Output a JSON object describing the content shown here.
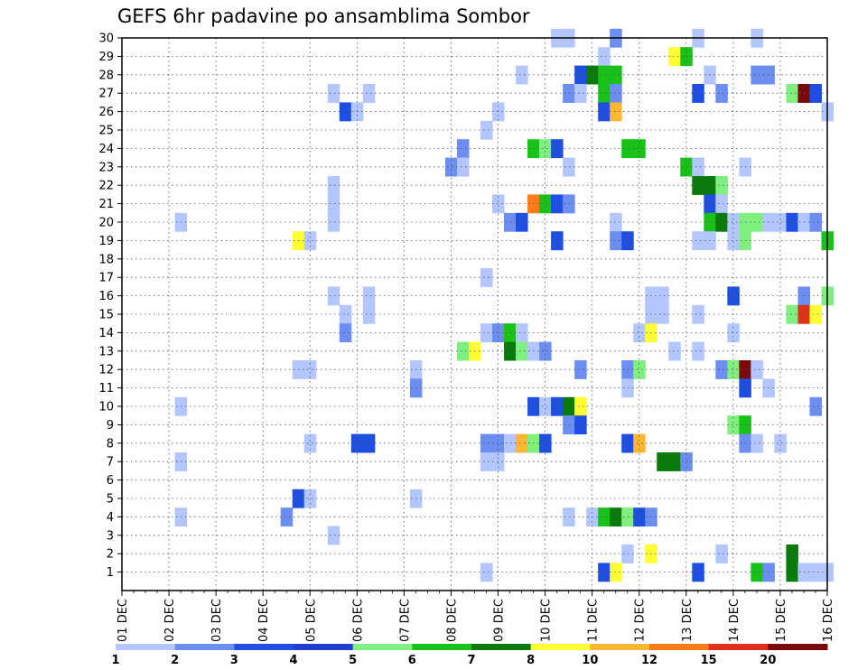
{
  "chart_data": {
    "type": "heatmap",
    "title": "GEFS 6hr padavine po ansamblima Sombor",
    "xlabel": "",
    "ylabel": "",
    "x_labels": [
      "01 DEC",
      "02 DEC",
      "03 DEC",
      "04 DEC",
      "05 DEC",
      "06 DEC",
      "07 DEC",
      "08 DEC",
      "09 DEC",
      "10 DEC",
      "11 DEC",
      "12 DEC",
      "13 DEC",
      "14 DEC",
      "15 DEC",
      "16 DEC"
    ],
    "x_range_days": [
      1,
      16
    ],
    "y_labels": [
      1,
      2,
      3,
      4,
      5,
      6,
      7,
      8,
      9,
      10,
      11,
      12,
      13,
      14,
      15,
      16,
      17,
      18,
      19,
      20,
      21,
      22,
      23,
      24,
      25,
      26,
      27,
      28,
      29,
      30
    ],
    "y_range_members": [
      0,
      30
    ],
    "grid": "dotted",
    "colorbar": {
      "labels": [
        "1",
        "2",
        "3",
        "4",
        "5",
        "6",
        "7",
        "8",
        "10",
        "12",
        "15",
        "20"
      ],
      "colors": [
        "#b3c6ff",
        "#6b8ef0",
        "#1f4fe0",
        "#1f3fd0",
        "#7ff07f",
        "#19c219",
        "#0a7a0a",
        "#ffff33",
        "#ffb733",
        "#ff7a1a",
        "#e0301a",
        "#7a0a0a"
      ]
    },
    "cells": [
      {
        "day": 10.25,
        "member": 30,
        "value": 1
      },
      {
        "day": 10.5,
        "member": 30,
        "value": 1
      },
      {
        "day": 11.5,
        "member": 30,
        "value": 2
      },
      {
        "day": 13.25,
        "member": 30,
        "value": 1
      },
      {
        "day": 14.5,
        "member": 30,
        "value": 1
      },
      {
        "day": 11.25,
        "member": 29,
        "value": 1
      },
      {
        "day": 12.75,
        "member": 29,
        "value": 8
      },
      {
        "day": 13.0,
        "member": 29,
        "value": 6
      },
      {
        "day": 9.5,
        "member": 28,
        "value": 1
      },
      {
        "day": 10.75,
        "member": 28,
        "value": 3
      },
      {
        "day": 11.0,
        "member": 28,
        "value": 7
      },
      {
        "day": 11.25,
        "member": 28,
        "value": 6
      },
      {
        "day": 11.5,
        "member": 28,
        "value": 6
      },
      {
        "day": 13.5,
        "member": 28,
        "value": 1
      },
      {
        "day": 14.5,
        "member": 28,
        "value": 2
      },
      {
        "day": 14.75,
        "member": 28,
        "value": 2
      },
      {
        "day": 5.5,
        "member": 27,
        "value": 1
      },
      {
        "day": 6.25,
        "member": 27,
        "value": 1
      },
      {
        "day": 10.5,
        "member": 27,
        "value": 2
      },
      {
        "day": 10.75,
        "member": 27,
        "value": 1
      },
      {
        "day": 11.25,
        "member": 27,
        "value": 6
      },
      {
        "day": 11.5,
        "member": 27,
        "value": 2
      },
      {
        "day": 13.25,
        "member": 27,
        "value": 3
      },
      {
        "day": 13.75,
        "member": 27,
        "value": 2
      },
      {
        "day": 15.25,
        "member": 27,
        "value": 5
      },
      {
        "day": 15.5,
        "member": 27,
        "value": 20
      },
      {
        "day": 15.75,
        "member": 27,
        "value": 3
      },
      {
        "day": 5.75,
        "member": 26,
        "value": 3
      },
      {
        "day": 6.0,
        "member": 26,
        "value": 1
      },
      {
        "day": 9.0,
        "member": 26,
        "value": 1
      },
      {
        "day": 11.25,
        "member": 26,
        "value": 3
      },
      {
        "day": 11.5,
        "member": 26,
        "value": 10
      },
      {
        "day": 16.0,
        "member": 26,
        "value": 1
      },
      {
        "day": 8.75,
        "member": 25,
        "value": 1
      },
      {
        "day": 8.25,
        "member": 24,
        "value": 2
      },
      {
        "day": 9.75,
        "member": 24,
        "value": 6
      },
      {
        "day": 10.0,
        "member": 24,
        "value": 5
      },
      {
        "day": 10.25,
        "member": 24,
        "value": 3
      },
      {
        "day": 11.75,
        "member": 24,
        "value": 6
      },
      {
        "day": 12.0,
        "member": 24,
        "value": 6
      },
      {
        "day": 8.0,
        "member": 23,
        "value": 2
      },
      {
        "day": 8.25,
        "member": 23,
        "value": 1
      },
      {
        "day": 10.5,
        "member": 23,
        "value": 1
      },
      {
        "day": 13.0,
        "member": 23,
        "value": 6
      },
      {
        "day": 13.25,
        "member": 23,
        "value": 1
      },
      {
        "day": 14.25,
        "member": 23,
        "value": 1
      },
      {
        "day": 5.5,
        "member": 22,
        "value": 1
      },
      {
        "day": 13.25,
        "member": 22,
        "value": 7
      },
      {
        "day": 13.5,
        "member": 22,
        "value": 7
      },
      {
        "day": 13.75,
        "member": 22,
        "value": 5
      },
      {
        "day": 5.5,
        "member": 21,
        "value": 1
      },
      {
        "day": 9.0,
        "member": 21,
        "value": 1
      },
      {
        "day": 9.75,
        "member": 21,
        "value": 12
      },
      {
        "day": 10.0,
        "member": 21,
        "value": 6
      },
      {
        "day": 10.25,
        "member": 21,
        "value": 3
      },
      {
        "day": 10.5,
        "member": 21,
        "value": 2
      },
      {
        "day": 13.5,
        "member": 21,
        "value": 3
      },
      {
        "day": 13.75,
        "member": 21,
        "value": 1
      },
      {
        "day": 2.25,
        "member": 20,
        "value": 1
      },
      {
        "day": 5.5,
        "member": 20,
        "value": 1
      },
      {
        "day": 9.25,
        "member": 20,
        "value": 2
      },
      {
        "day": 9.5,
        "member": 20,
        "value": 3
      },
      {
        "day": 11.5,
        "member": 20,
        "value": 1
      },
      {
        "day": 13.5,
        "member": 20,
        "value": 6
      },
      {
        "day": 13.75,
        "member": 20,
        "value": 7
      },
      {
        "day": 14.0,
        "member": 20,
        "value": 1
      },
      {
        "day": 14.25,
        "member": 20,
        "value": 5
      },
      {
        "day": 14.5,
        "member": 20,
        "value": 5
      },
      {
        "day": 14.75,
        "member": 20,
        "value": 1
      },
      {
        "day": 15.0,
        "member": 20,
        "value": 1
      },
      {
        "day": 15.25,
        "member": 20,
        "value": 3
      },
      {
        "day": 15.5,
        "member": 20,
        "value": 1
      },
      {
        "day": 15.75,
        "member": 20,
        "value": 2
      },
      {
        "day": 4.75,
        "member": 19,
        "value": 8
      },
      {
        "day": 5.0,
        "member": 19,
        "value": 1
      },
      {
        "day": 10.25,
        "member": 19,
        "value": 3
      },
      {
        "day": 11.5,
        "member": 19,
        "value": 2
      },
      {
        "day": 11.75,
        "member": 19,
        "value": 3
      },
      {
        "day": 13.25,
        "member": 19,
        "value": 1
      },
      {
        "day": 13.5,
        "member": 19,
        "value": 1
      },
      {
        "day": 14.0,
        "member": 19,
        "value": 1
      },
      {
        "day": 14.25,
        "member": 19,
        "value": 5
      },
      {
        "day": 16.0,
        "member": 19,
        "value": 6
      },
      {
        "day": 8.75,
        "member": 17,
        "value": 1
      },
      {
        "day": 5.5,
        "member": 16,
        "value": 1
      },
      {
        "day": 6.25,
        "member": 16,
        "value": 1
      },
      {
        "day": 12.25,
        "member": 16,
        "value": 1
      },
      {
        "day": 12.5,
        "member": 16,
        "value": 1
      },
      {
        "day": 14.0,
        "member": 16,
        "value": 3
      },
      {
        "day": 15.5,
        "member": 16,
        "value": 2
      },
      {
        "day": 16.0,
        "member": 16,
        "value": 5
      },
      {
        "day": 5.75,
        "member": 15,
        "value": 1
      },
      {
        "day": 6.25,
        "member": 15,
        "value": 1
      },
      {
        "day": 12.25,
        "member": 15,
        "value": 1
      },
      {
        "day": 12.5,
        "member": 15,
        "value": 1
      },
      {
        "day": 13.25,
        "member": 15,
        "value": 1
      },
      {
        "day": 15.25,
        "member": 15,
        "value": 5
      },
      {
        "day": 15.5,
        "member": 15,
        "value": 15
      },
      {
        "day": 15.75,
        "member": 15,
        "value": 8
      },
      {
        "day": 5.75,
        "member": 14,
        "value": 2
      },
      {
        "day": 8.75,
        "member": 14,
        "value": 1
      },
      {
        "day": 9.0,
        "member": 14,
        "value": 2
      },
      {
        "day": 9.25,
        "member": 14,
        "value": 6
      },
      {
        "day": 9.5,
        "member": 14,
        "value": 1
      },
      {
        "day": 12.0,
        "member": 14,
        "value": 1
      },
      {
        "day": 12.25,
        "member": 14,
        "value": 8
      },
      {
        "day": 14.0,
        "member": 14,
        "value": 1
      },
      {
        "day": 8.25,
        "member": 13,
        "value": 5
      },
      {
        "day": 8.5,
        "member": 13,
        "value": 8
      },
      {
        "day": 9.25,
        "member": 13,
        "value": 7
      },
      {
        "day": 9.5,
        "member": 13,
        "value": 5
      },
      {
        "day": 9.75,
        "member": 13,
        "value": 1
      },
      {
        "day": 10.0,
        "member": 13,
        "value": 2
      },
      {
        "day": 12.75,
        "member": 13,
        "value": 1
      },
      {
        "day": 13.25,
        "member": 13,
        "value": 1
      },
      {
        "day": 4.75,
        "member": 12,
        "value": 1
      },
      {
        "day": 5.0,
        "member": 12,
        "value": 1
      },
      {
        "day": 7.25,
        "member": 12,
        "value": 1
      },
      {
        "day": 10.75,
        "member": 12,
        "value": 2
      },
      {
        "day": 11.75,
        "member": 12,
        "value": 2
      },
      {
        "day": 12.0,
        "member": 12,
        "value": 5
      },
      {
        "day": 13.75,
        "member": 12,
        "value": 2
      },
      {
        "day": 14.0,
        "member": 12,
        "value": 5
      },
      {
        "day": 14.25,
        "member": 12,
        "value": 20
      },
      {
        "day": 14.5,
        "member": 12,
        "value": 1
      },
      {
        "day": 7.25,
        "member": 11,
        "value": 2
      },
      {
        "day": 11.75,
        "member": 11,
        "value": 1
      },
      {
        "day": 14.25,
        "member": 11,
        "value": 3
      },
      {
        "day": 14.75,
        "member": 11,
        "value": 1
      },
      {
        "day": 2.25,
        "member": 10,
        "value": 1
      },
      {
        "day": 9.75,
        "member": 10,
        "value": 3
      },
      {
        "day": 10.0,
        "member": 10,
        "value": 1
      },
      {
        "day": 10.25,
        "member": 10,
        "value": 3
      },
      {
        "day": 10.5,
        "member": 10,
        "value": 7
      },
      {
        "day": 10.75,
        "member": 10,
        "value": 8
      },
      {
        "day": 15.75,
        "member": 10,
        "value": 2
      },
      {
        "day": 10.5,
        "member": 9,
        "value": 2
      },
      {
        "day": 10.75,
        "member": 9,
        "value": 3
      },
      {
        "day": 14.0,
        "member": 9,
        "value": 5
      },
      {
        "day": 14.25,
        "member": 9,
        "value": 6
      },
      {
        "day": 5.0,
        "member": 8,
        "value": 1
      },
      {
        "day": 6.0,
        "member": 8,
        "value": 3
      },
      {
        "day": 6.25,
        "member": 8,
        "value": 3
      },
      {
        "day": 8.75,
        "member": 8,
        "value": 2
      },
      {
        "day": 9.0,
        "member": 8,
        "value": 2
      },
      {
        "day": 9.25,
        "member": 8,
        "value": 1
      },
      {
        "day": 9.5,
        "member": 8,
        "value": 10
      },
      {
        "day": 9.75,
        "member": 8,
        "value": 5
      },
      {
        "day": 10.0,
        "member": 8,
        "value": 3
      },
      {
        "day": 11.75,
        "member": 8,
        "value": 3
      },
      {
        "day": 12.0,
        "member": 8,
        "value": 10
      },
      {
        "day": 14.25,
        "member": 8,
        "value": 2
      },
      {
        "day": 14.5,
        "member": 8,
        "value": 1
      },
      {
        "day": 15.0,
        "member": 8,
        "value": 1
      },
      {
        "day": 2.25,
        "member": 7,
        "value": 1
      },
      {
        "day": 8.75,
        "member": 7,
        "value": 1
      },
      {
        "day": 9.0,
        "member": 7,
        "value": 1
      },
      {
        "day": 12.5,
        "member": 7,
        "value": 7
      },
      {
        "day": 12.75,
        "member": 7,
        "value": 7
      },
      {
        "day": 13.0,
        "member": 7,
        "value": 2
      },
      {
        "day": 4.75,
        "member": 5,
        "value": 3
      },
      {
        "day": 5.0,
        "member": 5,
        "value": 1
      },
      {
        "day": 7.25,
        "member": 5,
        "value": 1
      },
      {
        "day": 2.25,
        "member": 4,
        "value": 1
      },
      {
        "day": 4.5,
        "member": 4,
        "value": 2
      },
      {
        "day": 10.5,
        "member": 4,
        "value": 1
      },
      {
        "day": 11.0,
        "member": 4,
        "value": 1
      },
      {
        "day": 11.25,
        "member": 4,
        "value": 6
      },
      {
        "day": 11.5,
        "member": 4,
        "value": 7
      },
      {
        "day": 11.75,
        "member": 4,
        "value": 5
      },
      {
        "day": 12.0,
        "member": 4,
        "value": 3
      },
      {
        "day": 12.25,
        "member": 4,
        "value": 2
      },
      {
        "day": 5.5,
        "member": 3,
        "value": 1
      },
      {
        "day": 11.75,
        "member": 2,
        "value": 1
      },
      {
        "day": 12.25,
        "member": 2,
        "value": 8
      },
      {
        "day": 13.75,
        "member": 2,
        "value": 1
      },
      {
        "day": 15.25,
        "member": 2,
        "value": 7
      },
      {
        "day": 8.75,
        "member": 1,
        "value": 1
      },
      {
        "day": 11.25,
        "member": 1,
        "value": 3
      },
      {
        "day": 11.5,
        "member": 1,
        "value": 8
      },
      {
        "day": 13.25,
        "member": 1,
        "value": 3
      },
      {
        "day": 14.5,
        "member": 1,
        "value": 6
      },
      {
        "day": 14.75,
        "member": 1,
        "value": 2
      },
      {
        "day": 15.25,
        "member": 1,
        "value": 7
      },
      {
        "day": 15.5,
        "member": 1,
        "value": 1
      },
      {
        "day": 15.75,
        "member": 1,
        "value": 1
      },
      {
        "day": 16.0,
        "member": 1,
        "value": 1
      }
    ]
  }
}
